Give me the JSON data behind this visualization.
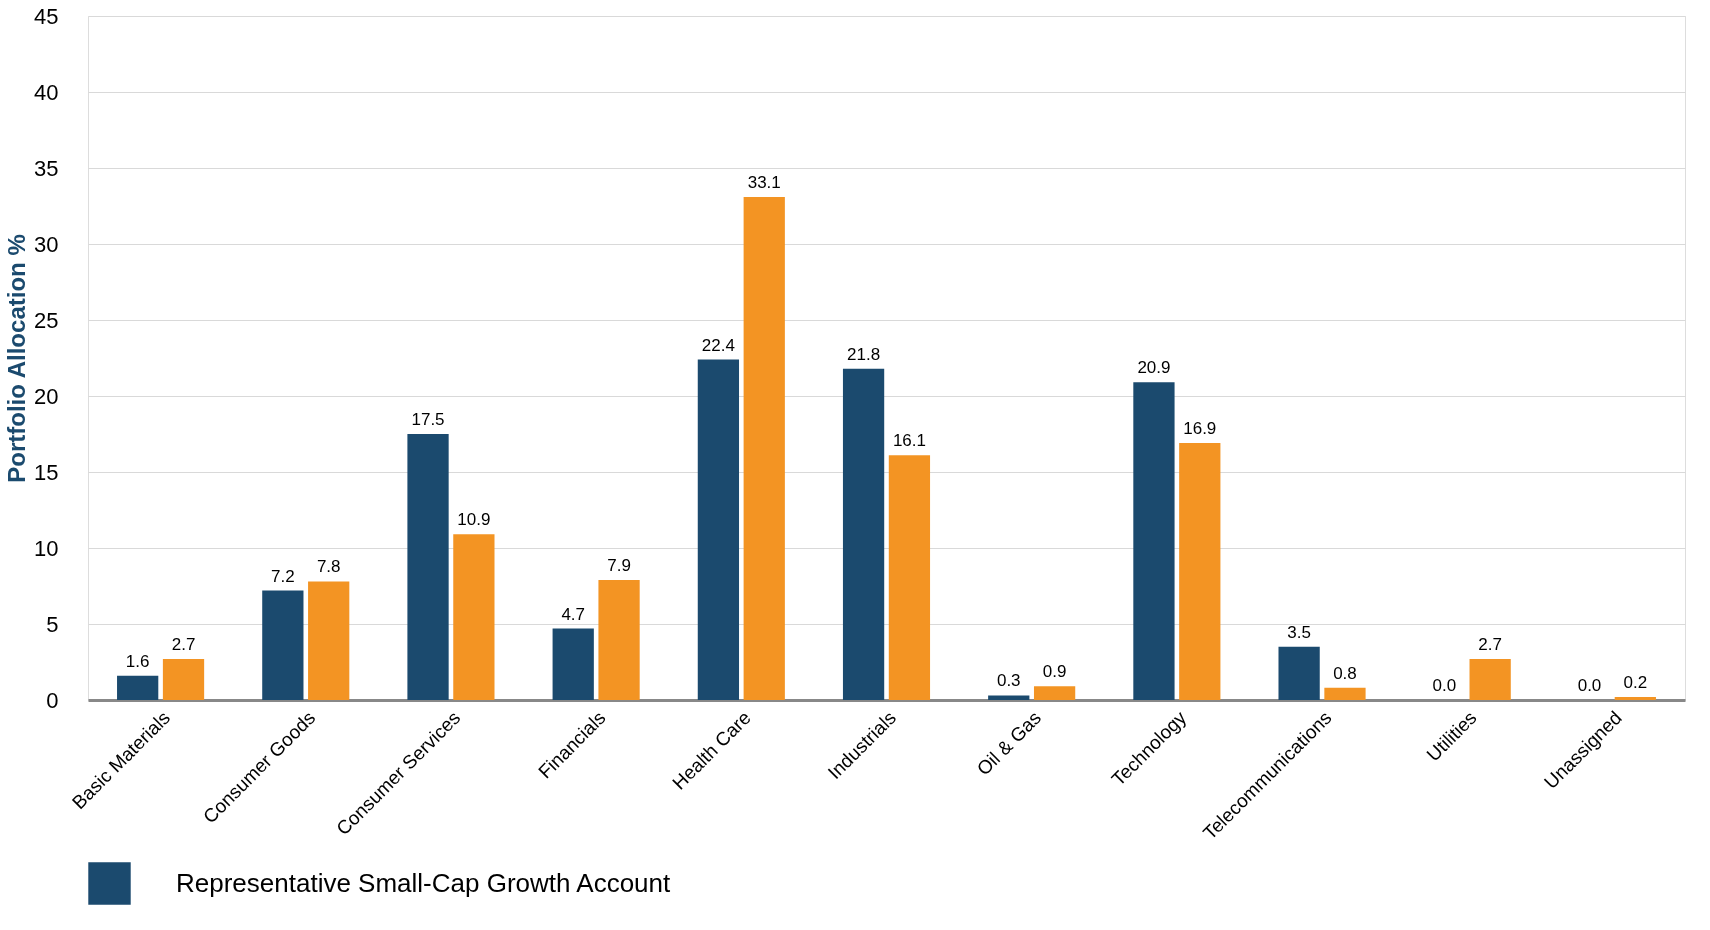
{
  "chart_data": {
    "type": "bar",
    "ylabel": "Portfolio Allocation %",
    "categories": [
      "Basic Materials",
      "Consumer Goods",
      "Consumer Services",
      "Financials",
      "Health Care",
      "Industrials",
      "Oil & Gas",
      "Technology",
      "Telecommunications",
      "Utilities",
      "Unassigned"
    ],
    "series": [
      {
        "name": "Representative Small-Cap Growth Account",
        "color": "#1b4a6e",
        "values": [
          1.6,
          7.2,
          17.5,
          4.7,
          22.4,
          21.8,
          0.3,
          20.9,
          3.5,
          0,
          0
        ],
        "value_labels": [
          "1.6",
          "7.2",
          "17.5",
          "4.7",
          "22.4",
          "21.8",
          "0.3",
          "20.9",
          "3.5",
          "0.0",
          "0.0"
        ]
      },
      {
        "color": "#f39423",
        "values": [
          2.7,
          7.8,
          10.9,
          7.9,
          33.1,
          16.1,
          0.9,
          16.9,
          0.8,
          2.7,
          0.2
        ],
        "value_labels": [
          "2.7",
          "7.8",
          "10.9",
          "7.9",
          "33.1",
          "16.1",
          "0.9",
          "16.9",
          "0.8",
          "2.7",
          "0.2"
        ]
      }
    ],
    "ylim": [
      0,
      45
    ],
    "yticks": [
      0,
      5,
      10,
      15,
      20,
      25,
      30,
      35,
      40,
      45
    ],
    "grid": "y",
    "legend": "bottom"
  }
}
